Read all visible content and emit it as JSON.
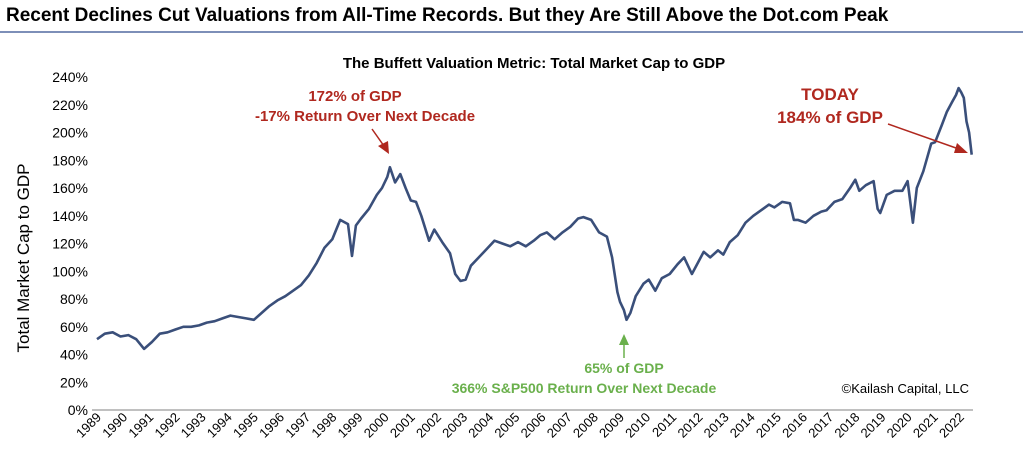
{
  "header": {
    "title": "Recent Declines Cut Valuations from All-Time Records. But they Are Still Above the Dot.com Peak"
  },
  "colors": {
    "line": "#3a4f7a",
    "red_annotation": "#b0281f",
    "green_annotation": "#6ab04c",
    "rule": "#7d8fb8"
  },
  "chart_data": {
    "type": "line",
    "title": "The Buffett Valuation Metric: Total Market Cap to GDP",
    "ylabel": "Total Market Cap to GDP",
    "xlabel": "",
    "ylim": [
      0,
      240
    ],
    "xlim": [
      1989,
      2022.5
    ],
    "grid": false,
    "x_tick_labels": [
      "1989",
      "1990",
      "1991",
      "1992",
      "1993",
      "1994",
      "1995",
      "1996",
      "1997",
      "1998",
      "1999",
      "2000",
      "2001",
      "2002",
      "2003",
      "2004",
      "2005",
      "2006",
      "2007",
      "2008",
      "2009",
      "2010",
      "2011",
      "2012",
      "2013",
      "2014",
      "2015",
      "2016",
      "2017",
      "2018",
      "2019",
      "2020",
      "2021",
      "2022"
    ],
    "y_ticks": [
      0,
      20,
      40,
      60,
      80,
      100,
      120,
      140,
      160,
      180,
      200,
      220,
      240
    ],
    "y_tick_labels": [
      "0%",
      "20%",
      "40%",
      "60%",
      "80%",
      "100%",
      "120%",
      "140%",
      "160%",
      "180%",
      "200%",
      "220%",
      "240%"
    ],
    "series": [
      {
        "points": [
          [
            1989.0,
            51
          ],
          [
            1989.3,
            55
          ],
          [
            1989.6,
            56
          ],
          [
            1989.9,
            53
          ],
          [
            1990.2,
            54
          ],
          [
            1990.5,
            51
          ],
          [
            1990.8,
            44
          ],
          [
            1991.1,
            49
          ],
          [
            1991.4,
            55
          ],
          [
            1991.7,
            56
          ],
          [
            1992.0,
            58
          ],
          [
            1992.3,
            60
          ],
          [
            1992.6,
            60
          ],
          [
            1992.9,
            61
          ],
          [
            1993.2,
            63
          ],
          [
            1993.5,
            64
          ],
          [
            1993.8,
            66
          ],
          [
            1994.1,
            68
          ],
          [
            1994.4,
            67
          ],
          [
            1994.7,
            66
          ],
          [
            1995.0,
            65
          ],
          [
            1995.3,
            70
          ],
          [
            1995.6,
            75
          ],
          [
            1995.9,
            79
          ],
          [
            1996.2,
            82
          ],
          [
            1996.5,
            86
          ],
          [
            1996.8,
            90
          ],
          [
            1997.1,
            97
          ],
          [
            1997.4,
            106
          ],
          [
            1997.7,
            117
          ],
          [
            1998.0,
            123
          ],
          [
            1998.3,
            137
          ],
          [
            1998.6,
            134
          ],
          [
            1998.75,
            111
          ],
          [
            1998.9,
            133
          ],
          [
            1999.1,
            138
          ],
          [
            1999.4,
            145
          ],
          [
            1999.7,
            155
          ],
          [
            1999.9,
            160
          ],
          [
            2000.1,
            168
          ],
          [
            2000.2,
            175
          ],
          [
            2000.4,
            164
          ],
          [
            2000.6,
            170
          ],
          [
            2000.8,
            160
          ],
          [
            2001.0,
            151
          ],
          [
            2001.2,
            150
          ],
          [
            2001.4,
            140
          ],
          [
            2001.7,
            122
          ],
          [
            2001.9,
            130
          ],
          [
            2002.2,
            121
          ],
          [
            2002.5,
            113
          ],
          [
            2002.7,
            98
          ],
          [
            2002.9,
            93
          ],
          [
            2003.1,
            94
          ],
          [
            2003.3,
            104
          ],
          [
            2003.6,
            110
          ],
          [
            2003.9,
            116
          ],
          [
            2004.2,
            122
          ],
          [
            2004.5,
            120
          ],
          [
            2004.8,
            118
          ],
          [
            2005.1,
            121
          ],
          [
            2005.4,
            118
          ],
          [
            2005.7,
            122
          ],
          [
            2005.95,
            126
          ],
          [
            2006.2,
            128
          ],
          [
            2006.5,
            123
          ],
          [
            2006.8,
            128
          ],
          [
            2007.1,
            132
          ],
          [
            2007.4,
            138
          ],
          [
            2007.6,
            139
          ],
          [
            2007.9,
            137
          ],
          [
            2008.2,
            128
          ],
          [
            2008.5,
            125
          ],
          [
            2008.7,
            110
          ],
          [
            2008.9,
            85
          ],
          [
            2009.0,
            78
          ],
          [
            2009.15,
            72
          ],
          [
            2009.25,
            65
          ],
          [
            2009.4,
            70
          ],
          [
            2009.6,
            82
          ],
          [
            2009.9,
            91
          ],
          [
            2010.1,
            94
          ],
          [
            2010.35,
            86
          ],
          [
            2010.6,
            95
          ],
          [
            2010.9,
            98
          ],
          [
            2011.2,
            105
          ],
          [
            2011.45,
            110
          ],
          [
            2011.75,
            98
          ],
          [
            2011.95,
            105
          ],
          [
            2012.2,
            114
          ],
          [
            2012.45,
            110
          ],
          [
            2012.75,
            115
          ],
          [
            2012.95,
            112
          ],
          [
            2013.2,
            121
          ],
          [
            2013.5,
            126
          ],
          [
            2013.8,
            135
          ],
          [
            2014.1,
            140
          ],
          [
            2014.4,
            144
          ],
          [
            2014.7,
            148
          ],
          [
            2014.9,
            146
          ],
          [
            2015.2,
            150
          ],
          [
            2015.5,
            149
          ],
          [
            2015.65,
            137
          ],
          [
            2015.8,
            137
          ],
          [
            2016.1,
            135
          ],
          [
            2016.4,
            140
          ],
          [
            2016.7,
            143
          ],
          [
            2016.9,
            144
          ],
          [
            2017.2,
            150
          ],
          [
            2017.5,
            152
          ],
          [
            2017.8,
            160
          ],
          [
            2018.0,
            166
          ],
          [
            2018.15,
            158
          ],
          [
            2018.4,
            162
          ],
          [
            2018.7,
            165
          ],
          [
            2018.85,
            145
          ],
          [
            2018.95,
            142
          ],
          [
            2019.2,
            155
          ],
          [
            2019.5,
            158
          ],
          [
            2019.8,
            158
          ],
          [
            2020.0,
            165
          ],
          [
            2020.2,
            135
          ],
          [
            2020.35,
            160
          ],
          [
            2020.6,
            172
          ],
          [
            2020.9,
            192
          ],
          [
            2021.05,
            193
          ],
          [
            2021.3,
            205
          ],
          [
            2021.5,
            215
          ],
          [
            2021.7,
            222
          ],
          [
            2021.85,
            227
          ],
          [
            2021.95,
            232
          ],
          [
            2022.05,
            229
          ],
          [
            2022.15,
            225
          ],
          [
            2022.25,
            208
          ],
          [
            2022.35,
            200
          ],
          [
            2022.45,
            184
          ]
        ]
      }
    ],
    "annotations": {
      "dotcom_line1": "172% of GDP",
      "dotcom_line2": "-17% Return Over Next Decade",
      "today_line1": "TODAY",
      "today_line2": "184% of GDP",
      "gfc_line1": "65% of GDP",
      "gfc_line2": "366% S&P500 Return Over Next Decade",
      "credit": "©Kailash Capital, LLC"
    }
  }
}
